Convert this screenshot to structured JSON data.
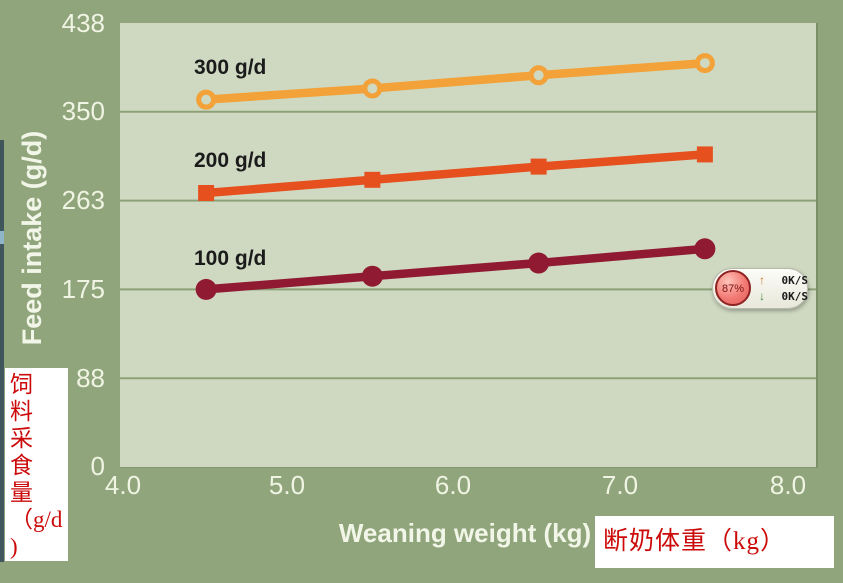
{
  "page": {
    "background_color": "#90a57b",
    "plot_background_color": "#cfd9c2",
    "grid_color": "#8da177",
    "tick_text_color": "#eff4e3",
    "caption_text_color": "#cc0a0a"
  },
  "chart_data": {
    "type": "line",
    "title": "",
    "xlabel": "Weaning weight (kg)",
    "ylabel": "Feed intake (g/d)",
    "xlim": [
      4.0,
      8.0
    ],
    "ylim": [
      0,
      437.5
    ],
    "xtick_labels": [
      "4.0",
      "5.0",
      "6.0",
      "7.0",
      "8.0"
    ],
    "xtick_values": [
      4.0,
      5.0,
      6.0,
      7.0,
      8.0
    ],
    "ytick_labels": [
      "438",
      "350",
      "263",
      "175",
      "88",
      "0"
    ],
    "ytick_values": [
      437.5,
      350,
      262.5,
      175,
      87.5,
      0
    ],
    "gridline_values": [
      87.5,
      175,
      262.5,
      350
    ],
    "grid": "horizontal-only",
    "legend_position": "inline-labels-left-of-lines",
    "series": [
      {
        "name": "300 g/d",
        "label": "300 g/d",
        "color": "#f2a238",
        "marker": "open-circle",
        "x": [
          4.5,
          5.5,
          6.5,
          7.5
        ],
        "values": [
          362,
          373,
          386,
          398
        ]
      },
      {
        "name": "200 g/d",
        "label": "200 g/d",
        "color": "#e5501e",
        "marker": "square",
        "x": [
          4.5,
          5.5,
          6.5,
          7.5
        ],
        "values": [
          270,
          283,
          296,
          308
        ]
      },
      {
        "name": "100 g/d",
        "label": "100 g/d",
        "color": "#8f1a32",
        "marker": "circle",
        "x": [
          4.5,
          5.5,
          6.5,
          7.5
        ],
        "values": [
          175,
          188,
          201,
          215
        ]
      }
    ]
  },
  "overlays": {
    "left_caption": {
      "text": "饲料采食量（g/d)",
      "lines": [
        "饲",
        "料",
        "采",
        "食",
        "量",
        "（g/d",
        ")"
      ]
    },
    "bottom_caption": {
      "text": "断奶体重（kg）"
    },
    "net_monitor": {
      "percent": "87%",
      "up_speed": "0K/S",
      "down_speed": "0K/S"
    }
  }
}
